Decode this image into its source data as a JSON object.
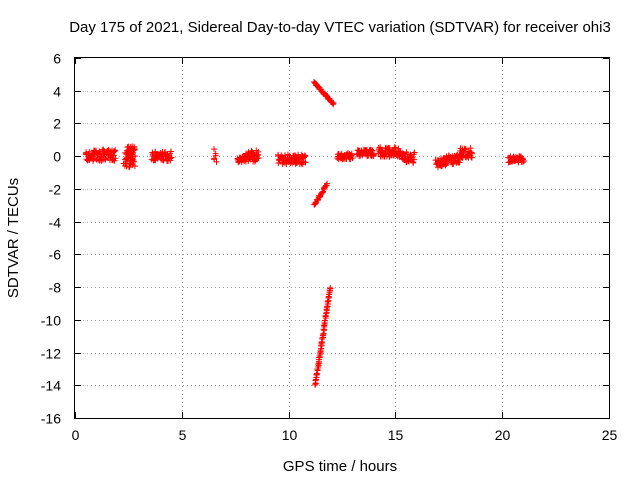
{
  "chart_data": {
    "type": "scatter",
    "title": "Day 175 of 2021, Sidereal Day-to-day VTEC variation (SDTVAR) for receiver ohi3",
    "xlabel": "GPS time / hours",
    "ylabel": "SDTVAR / TECUs",
    "xlim": [
      0,
      25
    ],
    "ylim": [
      -16,
      6
    ],
    "xticks": [
      "0",
      "5",
      "10",
      "15",
      "20",
      "25"
    ],
    "yticks": [
      "6",
      "4",
      "2",
      "0",
      "-2",
      "-4",
      "-6",
      "-8",
      "-10",
      "-12",
      "-14",
      "-16"
    ],
    "grid": true,
    "marker": "plus",
    "color": "#ff0000",
    "segments": [
      {
        "x_start": 0.5,
        "x_end": 0.9,
        "y_center": 0.0,
        "spread": 0.3
      },
      {
        "x_start": 0.9,
        "x_end": 1.9,
        "y_center": 0.05,
        "spread": 0.35
      },
      {
        "x_start": 2.3,
        "x_end": 2.8,
        "y_center": -0.2,
        "spread": 0.5
      },
      {
        "x_start": 2.4,
        "x_end": 2.8,
        "y_center": 0.35,
        "spread": 0.25
      },
      {
        "x_start": 3.6,
        "x_end": 4.5,
        "y_center": 0.0,
        "spread": 0.3
      },
      {
        "x_start": 6.5,
        "x_end": 6.6,
        "y_center": 0.1,
        "spread": 0.5
      },
      {
        "x_start": 7.6,
        "x_end": 8.0,
        "y_center": -0.2,
        "spread": 0.2
      },
      {
        "x_start": 8.0,
        "x_end": 8.6,
        "y_center": 0.0,
        "spread": 0.35
      },
      {
        "x_start": 9.5,
        "x_end": 10.8,
        "y_center": -0.2,
        "spread": 0.3
      },
      {
        "x_start": 12.3,
        "x_end": 13.0,
        "y_center": 0.0,
        "spread": 0.2
      },
      {
        "x_start": 13.2,
        "x_end": 14.0,
        "y_center": 0.2,
        "spread": 0.2
      },
      {
        "x_start": 14.2,
        "x_end": 15.3,
        "y_center": 0.25,
        "spread": 0.3
      },
      {
        "x_start": 15.3,
        "x_end": 15.9,
        "y_center": -0.1,
        "spread": 0.35
      },
      {
        "x_start": 16.9,
        "x_end": 17.4,
        "y_center": -0.4,
        "spread": 0.3
      },
      {
        "x_start": 17.4,
        "x_end": 18.0,
        "y_center": -0.2,
        "spread": 0.3
      },
      {
        "x_start": 18.0,
        "x_end": 18.6,
        "y_center": 0.2,
        "spread": 0.3
      },
      {
        "x_start": 20.3,
        "x_end": 21.0,
        "y_center": -0.2,
        "spread": 0.2
      }
    ],
    "tracks": [
      {
        "x_start": 11.2,
        "y_start": 4.5,
        "x_end": 12.1,
        "y_end": 3.2,
        "points": 40
      },
      {
        "x_start": 11.2,
        "y_start": -3.0,
        "x_end": 11.8,
        "y_end": -1.7,
        "points": 30
      },
      {
        "x_start": 11.25,
        "y_start": -14.0,
        "x_end": 11.95,
        "y_end": -8.0,
        "points": 70
      }
    ]
  }
}
